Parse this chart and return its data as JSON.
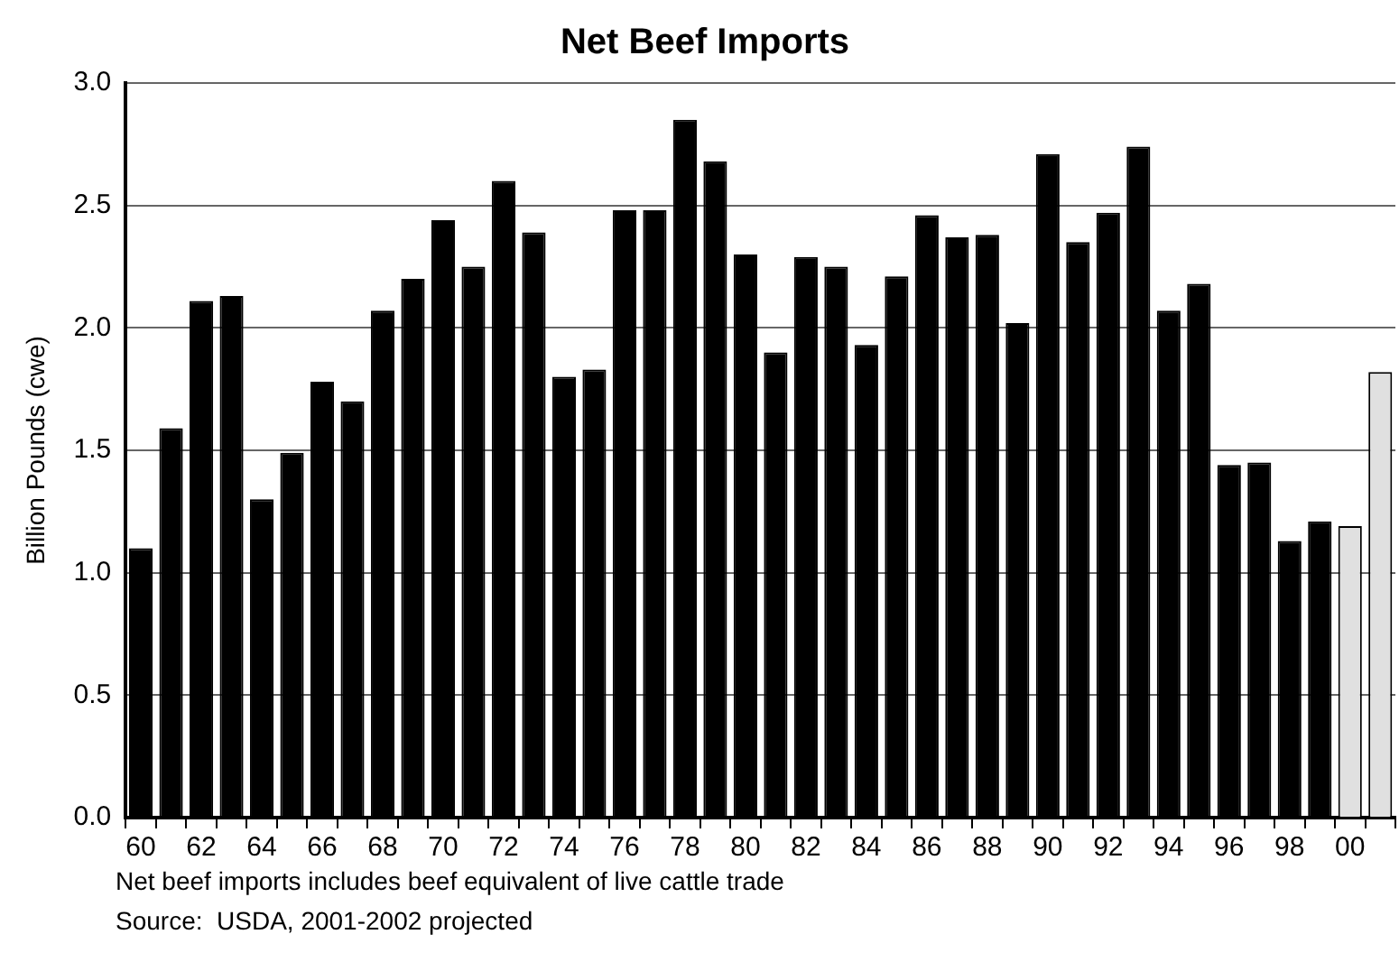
{
  "chart_data": {
    "type": "bar",
    "title": "Net Beef Imports",
    "ylabel": "Billion Pounds (cwe)",
    "categories": [
      "60",
      null,
      "62",
      null,
      "64",
      null,
      "66",
      null,
      "68",
      null,
      "70",
      null,
      "72",
      null,
      "74",
      null,
      "76",
      null,
      "78",
      null,
      "80",
      null,
      "82",
      null,
      "84",
      null,
      "86",
      null,
      "88",
      null,
      "90",
      null,
      "92",
      null,
      "94",
      null,
      "96",
      null,
      "98",
      null,
      "00",
      null
    ],
    "values": [
      1.1,
      1.59,
      2.11,
      2.13,
      1.3,
      1.49,
      1.78,
      1.7,
      2.07,
      2.2,
      2.44,
      2.25,
      2.6,
      2.39,
      1.8,
      1.83,
      2.48,
      2.48,
      2.85,
      2.68,
      2.3,
      1.9,
      2.29,
      2.25,
      1.93,
      2.21,
      2.46,
      2.37,
      2.38,
      2.02,
      2.71,
      2.35,
      2.47,
      2.74,
      2.07,
      2.18,
      1.44,
      1.45,
      1.13,
      1.21,
      1.19,
      1.82
    ],
    "colors": [
      "#000000",
      "#000000",
      "#000000",
      "#000000",
      "#000000",
      "#000000",
      "#000000",
      "#000000",
      "#000000",
      "#000000",
      "#000000",
      "#000000",
      "#000000",
      "#000000",
      "#000000",
      "#000000",
      "#000000",
      "#000000",
      "#000000",
      "#000000",
      "#000000",
      "#000000",
      "#000000",
      "#000000",
      "#000000",
      "#000000",
      "#000000",
      "#000000",
      "#000000",
      "#000000",
      "#000000",
      "#000000",
      "#000000",
      "#000000",
      "#000000",
      "#000000",
      "#000000",
      "#000000",
      "#000000",
      "#000000",
      "#e0e0e0",
      "#e0e0e0"
    ],
    "ylim": [
      0,
      3
    ],
    "yticks": [
      {
        "value": 0,
        "label": "0.0"
      },
      {
        "value": 0.5,
        "label": "0.5"
      },
      {
        "value": 1,
        "label": "1.0"
      },
      {
        "value": 1.5,
        "label": "1.5"
      },
      {
        "value": 2,
        "label": "2.0"
      },
      {
        "value": 2.5,
        "label": "2.5"
      },
      {
        "value": 3,
        "label": "3.0"
      }
    ],
    "grid": "y",
    "legend": false,
    "annotations": [
      "Net beef imports includes beef equivalent of live cattle trade",
      "Source:  USDA, 2001-2002 projected"
    ]
  }
}
